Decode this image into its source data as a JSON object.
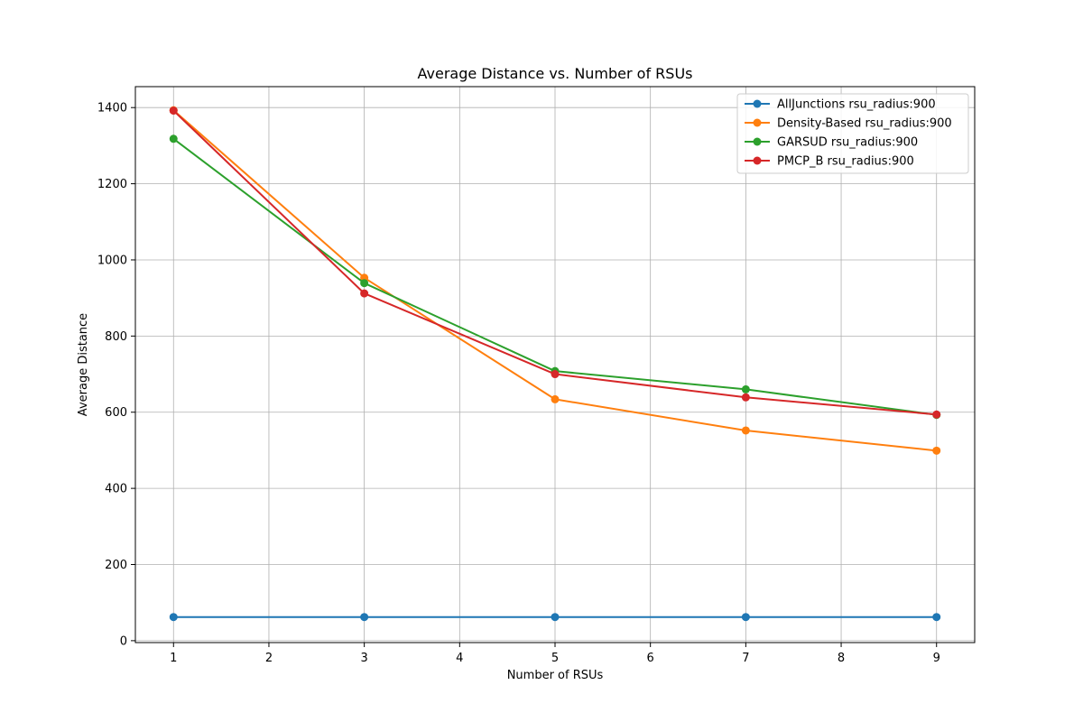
{
  "chart_data": {
    "type": "line",
    "title": "Average Distance vs. Number of RSUs",
    "xlabel": "Number of RSUs",
    "ylabel": "Average Distance",
    "x": [
      1,
      3,
      5,
      7,
      9
    ],
    "xlim": [
      0.6,
      9.4
    ],
    "ylim": [
      -5,
      1455
    ],
    "xticks": [
      1,
      2,
      3,
      4,
      5,
      6,
      7,
      8,
      9
    ],
    "yticks": [
      0,
      200,
      400,
      600,
      800,
      1000,
      1200,
      1400
    ],
    "grid": true,
    "legend_position": "top-right",
    "series": [
      {
        "name": "AllJunctions rsu_radius:900",
        "color": "#1f77b4",
        "values": [
          62,
          62,
          62,
          62,
          62
        ]
      },
      {
        "name": "Density-Based rsu_radius:900",
        "color": "#ff7f0e",
        "values": [
          1393,
          953,
          634,
          552,
          499
        ]
      },
      {
        "name": "GARSUD rsu_radius:900",
        "color": "#2ca02c",
        "values": [
          1318,
          939,
          708,
          660,
          593
        ]
      },
      {
        "name": "PMCP_B rsu_radius:900",
        "color": "#d62728",
        "values": [
          1392,
          912,
          700,
          639,
          594
        ]
      }
    ]
  }
}
